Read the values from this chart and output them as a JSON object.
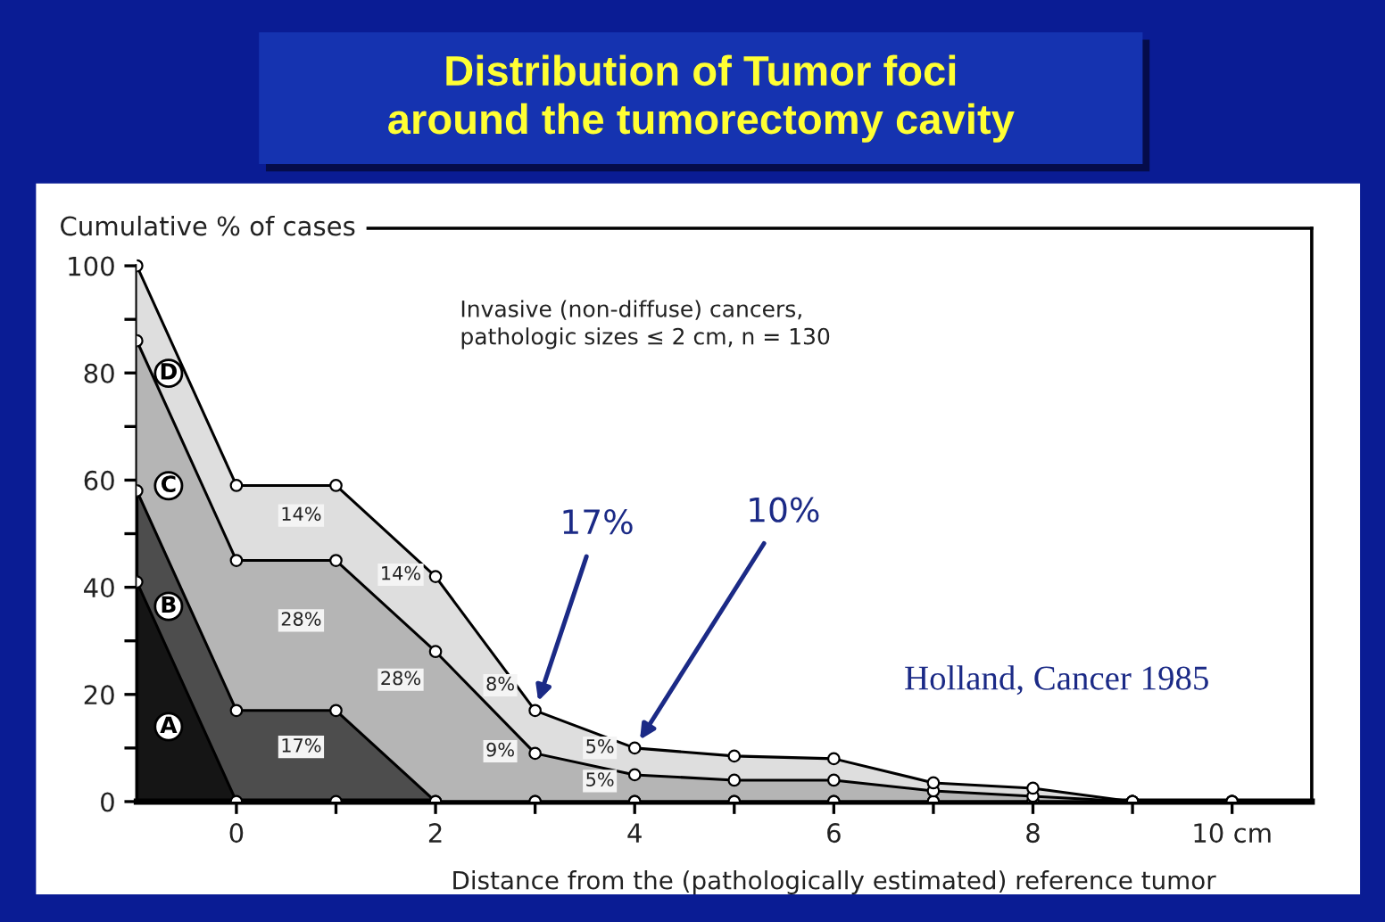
{
  "chart_data": {
    "type": "area",
    "title": "Distribution of Tumor foci\naround the tumorectomy cavity",
    "xlabel": "Distance from the (pathologically estimated) reference tumor",
    "ylabel": "Cumulative % of cases",
    "annotations": [
      "Invasive (non-diffuse) cancers,\npathologic sizes ≤ 2 cm, n = 130",
      "Holland, Cancer 1985",
      {
        "text": "17%",
        "x": 3,
        "y": 17
      },
      {
        "text": "10%",
        "x": 4,
        "y": 10
      }
    ],
    "x": [
      -1,
      0,
      1,
      2,
      3,
      4,
      5,
      6,
      7,
      8,
      9,
      10
    ],
    "stacked": true,
    "series": [
      {
        "name": "A",
        "color": "#151515",
        "values": [
          41,
          0,
          0,
          0,
          0,
          0,
          0,
          0,
          0,
          0,
          0,
          0
        ]
      },
      {
        "name": "B",
        "color": "#4d4d4d",
        "values": [
          17,
          17,
          17,
          0,
          0,
          0,
          0,
          0,
          0,
          0,
          0,
          0
        ],
        "value_labels": [
          null,
          null,
          "17%",
          null,
          null,
          null,
          null,
          null,
          null,
          null,
          null,
          null
        ]
      },
      {
        "name": "C",
        "color": "#b5b5b5",
        "values": [
          28,
          28,
          28,
          28,
          9,
          5,
          4,
          4,
          2,
          1,
          0,
          0
        ],
        "value_labels": [
          null,
          null,
          "28%",
          "28%",
          "9%",
          "5%",
          null,
          null,
          null,
          null,
          null,
          null
        ]
      },
      {
        "name": "D",
        "color": "#dedede",
        "values": [
          14,
          14,
          14,
          14,
          8,
          5,
          4.5,
          4,
          1.5,
          1.5,
          0,
          0
        ],
        "value_labels": [
          null,
          null,
          "14%",
          "14%",
          "8%",
          "5%",
          null,
          null,
          null,
          null,
          null,
          null
        ]
      }
    ],
    "xlim": [
      -1,
      10.8
    ],
    "xticks": [
      0,
      {
        "value": 1,
        "label": null
      },
      2,
      {
        "value": 3,
        "label": null
      },
      4,
      {
        "value": 5,
        "label": null
      },
      6,
      {
        "value": 7,
        "label": null
      },
      8,
      {
        "value": 9,
        "label": null
      },
      {
        "value": 10,
        "label": "10 cm"
      }
    ],
    "ylim": [
      0,
      107
    ],
    "yticks": [
      0,
      {
        "value": 10,
        "label": null
      },
      20,
      {
        "value": 30,
        "label": null
      },
      40,
      {
        "value": 50,
        "label": null
      },
      60,
      {
        "value": 70,
        "label": null
      },
      80,
      {
        "value": 90,
        "label": null
      },
      100
    ],
    "marker": "circle"
  }
}
